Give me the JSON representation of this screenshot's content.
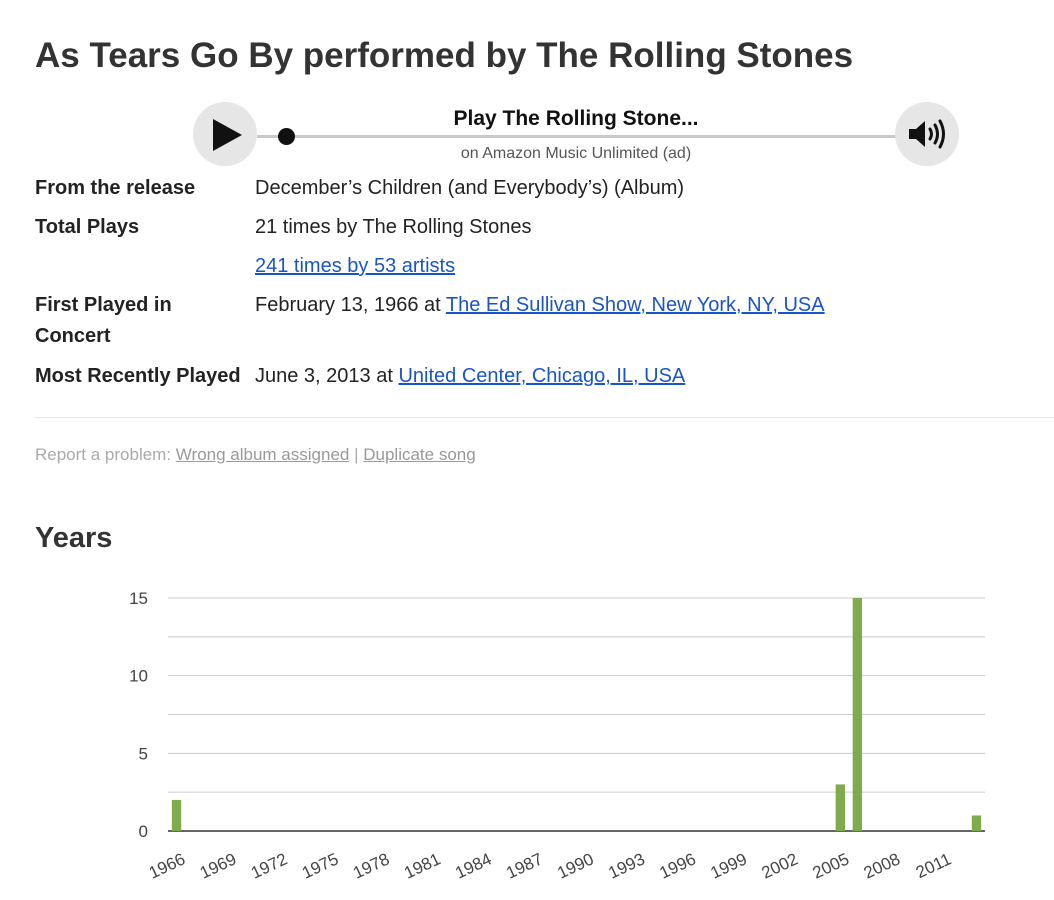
{
  "page": {
    "title": "As Tears Go By performed by The Rolling Stones"
  },
  "player": {
    "play_icon": "play-icon",
    "title": "Play The Rolling Stone...",
    "subtitle": "on Amazon Music Unlimited (ad)",
    "volume_icon": "speaker-volume-icon",
    "progress": 0.0
  },
  "details": {
    "release_label": "From the release",
    "release_value": "December’s Children (and Everybody’s) (Album)",
    "plays_label": "Total Plays",
    "plays_band": "21 times by The Rolling Stones",
    "plays_all": "241 times by 53 artists",
    "first_label_line1": "First Played in",
    "first_label_line2": "Concert",
    "first_date": "February 13, 1966 at ",
    "first_venue": "The Ed Sullivan Show, New York, NY, USA",
    "recent_label": "Most Recently Played",
    "recent_date": "June 3, 2013 at ",
    "recent_venue": "United Center, Chicago, IL, USA"
  },
  "report": {
    "prefix": "Report a problem: ",
    "wrong_album": "Wrong album assigned",
    "separator": " | ",
    "duplicate": "Duplicate song"
  },
  "years": {
    "heading": "Years"
  },
  "colors": {
    "bar": "#7fab4e",
    "link": "#1a55c7",
    "grid": "#cccccc"
  },
  "chart_data": {
    "type": "bar",
    "x_ticks": [
      "1966",
      "1969",
      "1972",
      "1975",
      "1978",
      "1981",
      "1984",
      "1987",
      "1990",
      "1993",
      "1996",
      "1999",
      "2002",
      "2005",
      "2008",
      "2011"
    ],
    "y_ticks": [
      "0",
      "5",
      "10",
      "15"
    ],
    "ylim": [
      0,
      15
    ],
    "grid": true,
    "x": [
      1966,
      2005,
      2006,
      2013
    ],
    "values": [
      2,
      3,
      15,
      1
    ]
  }
}
